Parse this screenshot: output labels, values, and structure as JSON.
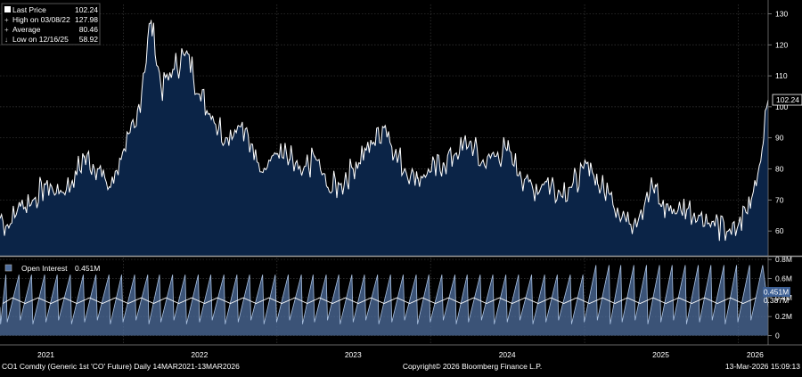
{
  "chart_data": [
    {
      "type": "area",
      "ylim": [
        52,
        133
      ],
      "y_ticks": [
        60,
        70,
        80,
        90,
        100,
        110,
        120,
        130
      ],
      "y_tick_labels": [
        "60",
        "70",
        "80",
        "90",
        "100",
        "110",
        "120",
        "130"
      ],
      "grid": "on",
      "legend_placement": "top-left",
      "legend": {
        "last_price_label": "Last Price",
        "last_price_value": "102.24",
        "high_label": "High on 03/08/22",
        "high_value": "127.98",
        "average_label": "Average",
        "average_value": "80.46",
        "low_label": "Low on 12/16/25",
        "low_value": "58.92"
      },
      "last_value_label": "102.24",
      "series": [
        {
          "name": "Last Price",
          "x": [
            "2021-03-14",
            "2021-04-01",
            "2021-05-01",
            "2021-06-01",
            "2021-07-01",
            "2021-08-01",
            "2021-09-01",
            "2021-10-01",
            "2021-11-01",
            "2021-12-01",
            "2022-01-01",
            "2022-02-01",
            "2022-03-08",
            "2022-04-01",
            "2022-05-01",
            "2022-06-01",
            "2022-07-01",
            "2022-08-01",
            "2022-09-01",
            "2022-10-01",
            "2022-11-01",
            "2022-12-01",
            "2023-01-01",
            "2023-02-01",
            "2023-03-01",
            "2023-04-01",
            "2023-05-01",
            "2023-06-01",
            "2023-07-01",
            "2023-08-01",
            "2023-09-15",
            "2023-10-01",
            "2023-11-01",
            "2023-12-01",
            "2024-01-01",
            "2024-02-01",
            "2024-03-01",
            "2024-04-05",
            "2024-05-01",
            "2024-06-01",
            "2024-07-01",
            "2024-08-01",
            "2024-09-01",
            "2024-10-01",
            "2024-11-01",
            "2024-12-01",
            "2025-01-15",
            "2025-02-01",
            "2025-03-01",
            "2025-04-10",
            "2025-05-01",
            "2025-06-18",
            "2025-07-01",
            "2025-08-01",
            "2025-09-01",
            "2025-10-01",
            "2025-11-01",
            "2025-12-16",
            "2026-01-01",
            "2026-02-01",
            "2026-03-01",
            "2026-03-13"
          ],
          "values": [
            64,
            62,
            68,
            70,
            75,
            72,
            76,
            84,
            80,
            74,
            86,
            94,
            127.98,
            106,
            112,
            118,
            104,
            97,
            90,
            94,
            88,
            80,
            85,
            83,
            78,
            84,
            74,
            75,
            80,
            86,
            94,
            87,
            80,
            77,
            79,
            82,
            85,
            89,
            82,
            84,
            86,
            79,
            73,
            76,
            73,
            74,
            82,
            75,
            72,
            63,
            64,
            75,
            68,
            67,
            67,
            65,
            63,
            58.92,
            62,
            70,
            88,
            102.24
          ]
        }
      ]
    },
    {
      "type": "line",
      "ylim": [
        -0.08,
        0.82
      ],
      "y_ticks": [
        0,
        0.2,
        0.4,
        0.6,
        0.8
      ],
      "y_tick_labels": [
        "0",
        "0.2M",
        "0.4M",
        "0.6M",
        "0.8M"
      ],
      "grid": "on",
      "legend_placement": "top-left",
      "legend_label": "Open Interest",
      "legend_value": "0.451M",
      "value_labels": [
        "0.451M",
        "0.387M"
      ],
      "series": [
        {
          "name": "Open Interest",
          "style": "monthly contract-roll sawtooth",
          "cycle_low_M": 0.12,
          "cycle_high_M": 0.64,
          "cycle_high_2025_2026_M": 0.74,
          "smoothed_level_M": 0.387
        }
      ]
    }
  ],
  "x_axis": {
    "start": "2021-03-14",
    "end": "2026-03-13",
    "tick_labels": [
      {
        "date": "2021-07-01",
        "label": "2021"
      },
      {
        "date": "2022-07-01",
        "label": "2022"
      },
      {
        "date": "2023-07-01",
        "label": "2023"
      },
      {
        "date": "2024-07-01",
        "label": "2024"
      },
      {
        "date": "2025-07-01",
        "label": "2025"
      },
      {
        "date": "2026-02-10",
        "label": "2026"
      }
    ]
  },
  "footer": {
    "left": "CO1 Comdty (Generic 1st 'CO' Future) Daily 14MAR2021-13MAR2026",
    "center": "Copyright© 2026 Bloomberg Finance L.P.",
    "right": "13-Mar-2026 15:09:13"
  },
  "colors": {
    "background": "#000000",
    "area_fill": "#0b2447",
    "price_line": "#ffffff",
    "grid": "#3a3a3a",
    "oi_fill": "#4f6f9f",
    "oi_line": "#ffffff",
    "panel_border": "#9a9a9a",
    "label_box": "#3d5f93"
  }
}
